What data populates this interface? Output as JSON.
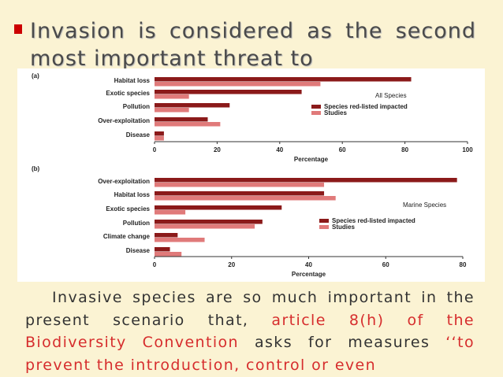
{
  "slide": {
    "bullet": "Invasion is considered as the second most important threat to",
    "body": [
      "Invasive species are so much important in the present scenario that,",
      "article 8(h) of the Biodiversity Convention",
      "asks for measures",
      "‘‘to prevent the introduction, control or even"
    ]
  },
  "chart_data": [
    {
      "type": "bar",
      "orientation": "horizontal",
      "panel_label": "(a)",
      "annotation": "All Species",
      "x_label": "Percentage",
      "categories": [
        "Habitat loss",
        "Exotic species",
        "Pollution",
        "Over-exploitation",
        "Disease"
      ],
      "series": [
        {
          "name": "Species red-listed impacted",
          "color": "#8b1a1a",
          "values": [
            82,
            47,
            24,
            17,
            3
          ]
        },
        {
          "name": "Studies",
          "color": "#e07a7a",
          "values": [
            53,
            11,
            11,
            21,
            3
          ]
        }
      ],
      "xlim": [
        0,
        100
      ],
      "xticks": [
        0,
        20,
        40,
        60,
        80,
        100
      ]
    },
    {
      "type": "bar",
      "orientation": "horizontal",
      "panel_label": "(b)",
      "annotation": "Marine Species",
      "x_label": "Percentage",
      "categories": [
        "Over-exploitation",
        "Habitat loss",
        "Exotic species",
        "Pollution",
        "Climate change",
        "Disease"
      ],
      "series": [
        {
          "name": "Species red-listed impacted",
          "color": "#8b1a1a",
          "values": [
            78.5,
            44,
            33,
            28,
            6,
            4
          ]
        },
        {
          "name": "Studies",
          "color": "#e07a7a",
          "values": [
            44,
            47,
            8,
            26,
            13,
            7
          ]
        }
      ],
      "xlim": [
        0,
        80
      ],
      "xticks": [
        0,
        20,
        40,
        60,
        80
      ]
    }
  ]
}
